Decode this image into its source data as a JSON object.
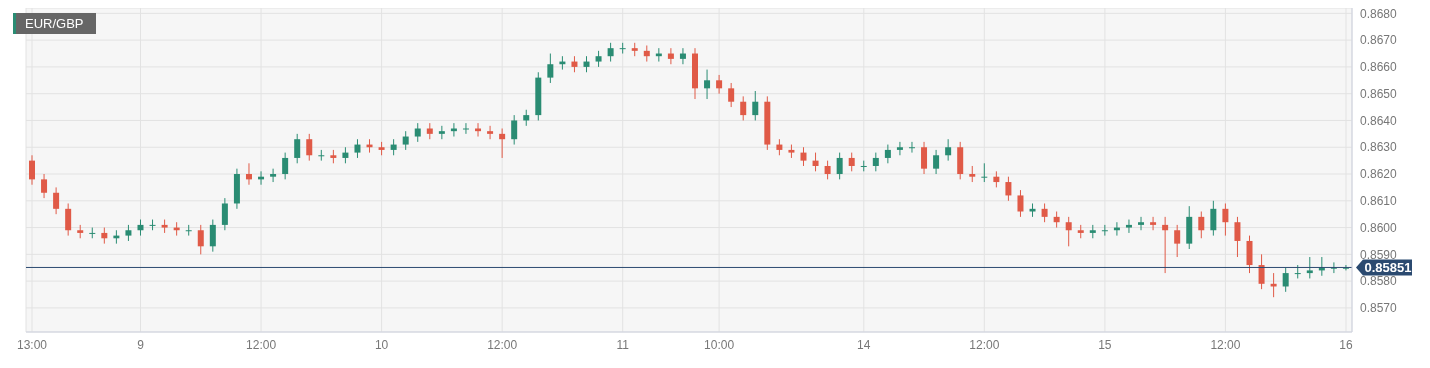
{
  "chart_data": {
    "type": "candlestick",
    "title": "EUR/GBP",
    "categories": [
      "13:00",
      null,
      null,
      null,
      null,
      null,
      null,
      null,
      null,
      "9",
      null,
      null,
      null,
      null,
      null,
      null,
      null,
      null,
      null,
      "12:00",
      null,
      null,
      null,
      null,
      null,
      null,
      null,
      null,
      null,
      "10",
      null,
      null,
      null,
      null,
      null,
      null,
      null,
      null,
      null,
      "12:00",
      null,
      null,
      null,
      null,
      null,
      null,
      null,
      null,
      null,
      "11",
      null,
      null,
      null,
      null,
      null,
      null,
      null,
      "10:00",
      null,
      null,
      null,
      null,
      null,
      null,
      null,
      null,
      null,
      null,
      null,
      "14",
      null,
      null,
      null,
      null,
      null,
      null,
      null,
      null,
      null,
      "12:00",
      null,
      null,
      null,
      null,
      null,
      null,
      null,
      null,
      null,
      "15",
      null,
      null,
      null,
      null,
      null,
      null,
      null,
      null,
      null,
      "12:00",
      null,
      null,
      null,
      null,
      null,
      null,
      null,
      null,
      null,
      "16"
    ],
    "ohlc": [
      [
        0.8625,
        0.8627,
        0.8616,
        0.8618
      ],
      [
        0.8618,
        0.862,
        0.8611,
        0.8613
      ],
      [
        0.8613,
        0.8615,
        0.8605,
        0.8607
      ],
      [
        0.8607,
        0.8609,
        0.8597,
        0.8599
      ],
      [
        0.8599,
        0.8601,
        0.8596,
        0.8598
      ],
      [
        0.8598,
        0.86,
        0.8596,
        0.8598
      ],
      [
        0.8598,
        0.86,
        0.8594,
        0.8596
      ],
      [
        0.8596,
        0.8599,
        0.8594,
        0.8597
      ],
      [
        0.8597,
        0.8601,
        0.8595,
        0.8599
      ],
      [
        0.8599,
        0.8603,
        0.8597,
        0.8601
      ],
      [
        0.8601,
        0.8603,
        0.8599,
        0.8601
      ],
      [
        0.8601,
        0.8603,
        0.8598,
        0.86
      ],
      [
        0.86,
        0.8602,
        0.8597,
        0.8599
      ],
      [
        0.8599,
        0.8601,
        0.8597,
        0.8599
      ],
      [
        0.8599,
        0.8601,
        0.859,
        0.8593
      ],
      [
        0.8593,
        0.8603,
        0.8591,
        0.8601
      ],
      [
        0.8601,
        0.8611,
        0.8599,
        0.8609
      ],
      [
        0.8609,
        0.8622,
        0.8607,
        0.862
      ],
      [
        0.862,
        0.8624,
        0.8616,
        0.8618
      ],
      [
        0.8618,
        0.8621,
        0.8616,
        0.8619
      ],
      [
        0.8619,
        0.8622,
        0.8617,
        0.862
      ],
      [
        0.862,
        0.8628,
        0.8618,
        0.8626
      ],
      [
        0.8626,
        0.8635,
        0.8624,
        0.8633
      ],
      [
        0.8633,
        0.8635,
        0.8625,
        0.8627
      ],
      [
        0.8627,
        0.8629,
        0.8625,
        0.8627
      ],
      [
        0.8627,
        0.8629,
        0.8624,
        0.8626
      ],
      [
        0.8626,
        0.863,
        0.8624,
        0.8628
      ],
      [
        0.8628,
        0.8633,
        0.8626,
        0.8631
      ],
      [
        0.8631,
        0.8633,
        0.8628,
        0.863
      ],
      [
        0.863,
        0.8632,
        0.8627,
        0.8629
      ],
      [
        0.8629,
        0.8633,
        0.8627,
        0.8631
      ],
      [
        0.8631,
        0.8636,
        0.8629,
        0.8634
      ],
      [
        0.8634,
        0.8639,
        0.8632,
        0.8637
      ],
      [
        0.8637,
        0.8639,
        0.8633,
        0.8635
      ],
      [
        0.8635,
        0.8638,
        0.8633,
        0.8636
      ],
      [
        0.8636,
        0.8639,
        0.8634,
        0.8637
      ],
      [
        0.8637,
        0.8639,
        0.8635,
        0.8637
      ],
      [
        0.8637,
        0.8639,
        0.8634,
        0.8636
      ],
      [
        0.8636,
        0.8638,
        0.8633,
        0.8635
      ],
      [
        0.8635,
        0.8637,
        0.8626,
        0.8633
      ],
      [
        0.8633,
        0.8642,
        0.8631,
        0.864
      ],
      [
        0.864,
        0.8644,
        0.8638,
        0.8642
      ],
      [
        0.8642,
        0.8658,
        0.864,
        0.8656
      ],
      [
        0.8656,
        0.8665,
        0.8654,
        0.8661
      ],
      [
        0.8661,
        0.8664,
        0.8659,
        0.8662
      ],
      [
        0.8662,
        0.8664,
        0.8658,
        0.866
      ],
      [
        0.866,
        0.8664,
        0.8658,
        0.8662
      ],
      [
        0.8662,
        0.8666,
        0.866,
        0.8664
      ],
      [
        0.8664,
        0.8669,
        0.8662,
        0.8667
      ],
      [
        0.8667,
        0.8669,
        0.8665,
        0.8667
      ],
      [
        0.8667,
        0.8669,
        0.8664,
        0.8666
      ],
      [
        0.8666,
        0.8668,
        0.8662,
        0.8664
      ],
      [
        0.8664,
        0.8667,
        0.8662,
        0.8665
      ],
      [
        0.8665,
        0.8667,
        0.8661,
        0.8663
      ],
      [
        0.8663,
        0.8667,
        0.8661,
        0.8665
      ],
      [
        0.8665,
        0.8667,
        0.8648,
        0.8652
      ],
      [
        0.8652,
        0.8659,
        0.8648,
        0.8655
      ],
      [
        0.8655,
        0.8657,
        0.865,
        0.8652
      ],
      [
        0.8652,
        0.8654,
        0.8645,
        0.8647
      ],
      [
        0.8647,
        0.8649,
        0.864,
        0.8642
      ],
      [
        0.8642,
        0.8651,
        0.864,
        0.8647
      ],
      [
        0.8647,
        0.8649,
        0.8629,
        0.8631
      ],
      [
        0.8631,
        0.8633,
        0.8627,
        0.8629
      ],
      [
        0.8629,
        0.8631,
        0.8626,
        0.8628
      ],
      [
        0.8628,
        0.863,
        0.8623,
        0.8625
      ],
      [
        0.8625,
        0.8628,
        0.8621,
        0.8623
      ],
      [
        0.8623,
        0.8625,
        0.8618,
        0.862
      ],
      [
        0.862,
        0.8628,
        0.8618,
        0.8626
      ],
      [
        0.8626,
        0.8628,
        0.8621,
        0.8623
      ],
      [
        0.8623,
        0.8625,
        0.8621,
        0.8623
      ],
      [
        0.8623,
        0.8628,
        0.8621,
        0.8626
      ],
      [
        0.8626,
        0.8631,
        0.8624,
        0.8629
      ],
      [
        0.8629,
        0.8632,
        0.8627,
        0.863
      ],
      [
        0.863,
        0.8632,
        0.8628,
        0.863
      ],
      [
        0.863,
        0.8632,
        0.862,
        0.8622
      ],
      [
        0.8622,
        0.8629,
        0.862,
        0.8627
      ],
      [
        0.8627,
        0.8633,
        0.8625,
        0.863
      ],
      [
        0.863,
        0.8632,
        0.8618,
        0.862
      ],
      [
        0.862,
        0.8623,
        0.8617,
        0.8619
      ],
      [
        0.8619,
        0.8624,
        0.8617,
        0.8619
      ],
      [
        0.8619,
        0.8621,
        0.8615,
        0.8617
      ],
      [
        0.8617,
        0.8619,
        0.861,
        0.8612
      ],
      [
        0.8612,
        0.8614,
        0.8604,
        0.8606
      ],
      [
        0.8606,
        0.8609,
        0.8604,
        0.8607
      ],
      [
        0.8607,
        0.8609,
        0.8602,
        0.8604
      ],
      [
        0.8604,
        0.8606,
        0.86,
        0.8602
      ],
      [
        0.8602,
        0.8604,
        0.8593,
        0.8599
      ],
      [
        0.8599,
        0.8601,
        0.8596,
        0.8598
      ],
      [
        0.8598,
        0.8601,
        0.8596,
        0.8599
      ],
      [
        0.8599,
        0.8601,
        0.8597,
        0.8599
      ],
      [
        0.8599,
        0.8602,
        0.8597,
        0.86
      ],
      [
        0.86,
        0.8603,
        0.8598,
        0.8601
      ],
      [
        0.8601,
        0.8604,
        0.8599,
        0.8602
      ],
      [
        0.8602,
        0.8604,
        0.8599,
        0.8601
      ],
      [
        0.8601,
        0.8604,
        0.8583,
        0.8599
      ],
      [
        0.8599,
        0.8601,
        0.8589,
        0.8594
      ],
      [
        0.8594,
        0.8608,
        0.8592,
        0.8604
      ],
      [
        0.8604,
        0.8606,
        0.8596,
        0.8599
      ],
      [
        0.8599,
        0.861,
        0.8597,
        0.8607
      ],
      [
        0.8607,
        0.8609,
        0.8597,
        0.8602
      ],
      [
        0.8602,
        0.8604,
        0.8589,
        0.8595
      ],
      [
        0.8595,
        0.8597,
        0.8583,
        0.8586
      ],
      [
        0.8586,
        0.859,
        0.8577,
        0.8579
      ],
      [
        0.8579,
        0.8583,
        0.8574,
        0.8578
      ],
      [
        0.8578,
        0.8585,
        0.8576,
        0.8583
      ],
      [
        0.8583,
        0.8586,
        0.8581,
        0.8583
      ],
      [
        0.8583,
        0.8589,
        0.8581,
        0.8584
      ],
      [
        0.8584,
        0.8589,
        0.8582,
        0.8585
      ],
      [
        0.8585,
        0.8587,
        0.8583,
        0.8585
      ],
      [
        0.8585,
        0.8586,
        0.8584,
        0.8585
      ]
    ],
    "colors": [
      "#e05a47",
      "#e05a47",
      "#e05a47",
      "#e05a47",
      "#e05a47",
      "#2a8c73",
      "#e05a47",
      "#2a8c73",
      "#2a8c73",
      "#2a8c73",
      "#2a8c73",
      "#e05a47",
      "#e05a47",
      "#2a8c73",
      "#e05a47",
      "#2a8c73",
      "#2a8c73",
      "#2a8c73",
      "#e05a47",
      "#2a8c73",
      "#2a8c73",
      "#2a8c73",
      "#2a8c73",
      "#e05a47",
      "#2a8c73",
      "#e05a47",
      "#2a8c73",
      "#2a8c73",
      "#e05a47",
      "#e05a47",
      "#2a8c73",
      "#2a8c73",
      "#2a8c73",
      "#e05a47",
      "#2a8c73",
      "#2a8c73",
      "#2a8c73",
      "#e05a47",
      "#e05a47",
      "#e05a47",
      "#2a8c73",
      "#2a8c73",
      "#2a8c73",
      "#2a8c73",
      "#2a8c73",
      "#e05a47",
      "#2a8c73",
      "#2a8c73",
      "#2a8c73",
      "#2a8c73",
      "#e05a47",
      "#e05a47",
      "#2a8c73",
      "#e05a47",
      "#2a8c73",
      "#e05a47",
      "#2a8c73",
      "#e05a47",
      "#e05a47",
      "#e05a47",
      "#2a8c73",
      "#e05a47",
      "#e05a47",
      "#e05a47",
      "#e05a47",
      "#e05a47",
      "#e05a47",
      "#2a8c73",
      "#e05a47",
      "#2a8c73",
      "#2a8c73",
      "#2a8c73",
      "#2a8c73",
      "#2a8c73",
      "#e05a47",
      "#2a8c73",
      "#2a8c73",
      "#e05a47",
      "#e05a47",
      "#2a8c73",
      "#e05a47",
      "#e05a47",
      "#e05a47",
      "#2a8c73",
      "#e05a47",
      "#e05a47",
      "#e05a47",
      "#e05a47",
      "#2a8c73",
      "#2a8c73",
      "#2a8c73",
      "#2a8c73",
      "#2a8c73",
      "#e05a47",
      "#e05a47",
      "#e05a47",
      "#2a8c73",
      "#e05a47",
      "#2a8c73",
      "#e05a47",
      "#e05a47",
      "#e05a47",
      "#e05a47",
      "#e05a47",
      "#2a8c73",
      "#2a8c73",
      "#2a8c73",
      "#2a8c73",
      "#2a8c73",
      "#2a8c73"
    ],
    "ylim": [
      0.8561,
      0.8682
    ],
    "yticks": [
      {
        "value": 0.857,
        "label": "0.8570"
      },
      {
        "value": 0.858,
        "label": "0.8580"
      },
      {
        "value": 0.859,
        "label": "0.8590"
      },
      {
        "value": 0.86,
        "label": "0.8600"
      },
      {
        "value": 0.861,
        "label": "0.8610"
      },
      {
        "value": 0.862,
        "label": "0.8620"
      },
      {
        "value": 0.863,
        "label": "0.8630"
      },
      {
        "value": 0.864,
        "label": "0.8640"
      },
      {
        "value": 0.865,
        "label": "0.8650"
      },
      {
        "value": 0.866,
        "label": "0.8660"
      },
      {
        "value": 0.867,
        "label": "0.8670"
      },
      {
        "value": 0.868,
        "label": "0.8680"
      }
    ],
    "ref_lines": [
      {
        "axis": "y",
        "value": 0.85851,
        "label": "0.85851",
        "color": "#2b4a70"
      }
    ],
    "grid": true
  }
}
